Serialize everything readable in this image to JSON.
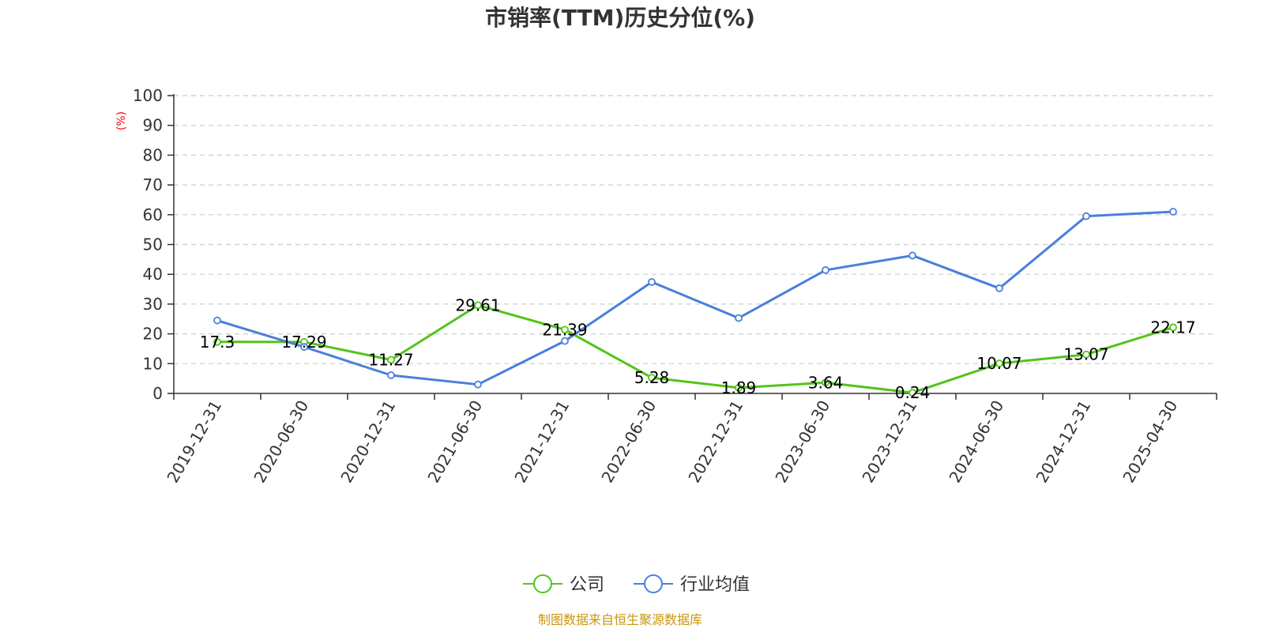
{
  "chart_data": {
    "type": "line",
    "title": "市销率(TTM)历史分位(%)",
    "ylabel": "(%)",
    "ylim": [
      0,
      100
    ],
    "yticks": [
      0,
      10,
      20,
      30,
      40,
      50,
      60,
      70,
      80,
      90,
      100
    ],
    "grid": true,
    "legend_position": "bottom-center",
    "categories": [
      "2019-12-31",
      "2020-06-30",
      "2020-12-31",
      "2021-06-30",
      "2021-12-31",
      "2022-06-30",
      "2022-12-31",
      "2023-06-30",
      "2023-12-31",
      "2024-06-30",
      "2024-12-31",
      "2025-04-30"
    ],
    "series": [
      {
        "name": "公司",
        "color": "#52c41a",
        "values": [
          17.3,
          17.29,
          11.27,
          29.61,
          21.39,
          5.28,
          1.89,
          3.64,
          0.24,
          10.07,
          13.07,
          22.17
        ],
        "labels": [
          "17.3",
          "17.29",
          "11.27",
          "29.61",
          "21.39",
          "5.28",
          "1.89",
          "3.64",
          "0.24",
          "10.07",
          "13.07",
          "22.17"
        ]
      },
      {
        "name": "行业均值",
        "color": "#4a7fdc",
        "values": [
          24.5,
          15.6,
          6.1,
          3.0,
          17.6,
          37.4,
          25.3,
          41.4,
          46.3,
          35.3,
          59.5,
          61.0
        ]
      }
    ],
    "source": "制图数据来自恒生聚源数据库"
  }
}
